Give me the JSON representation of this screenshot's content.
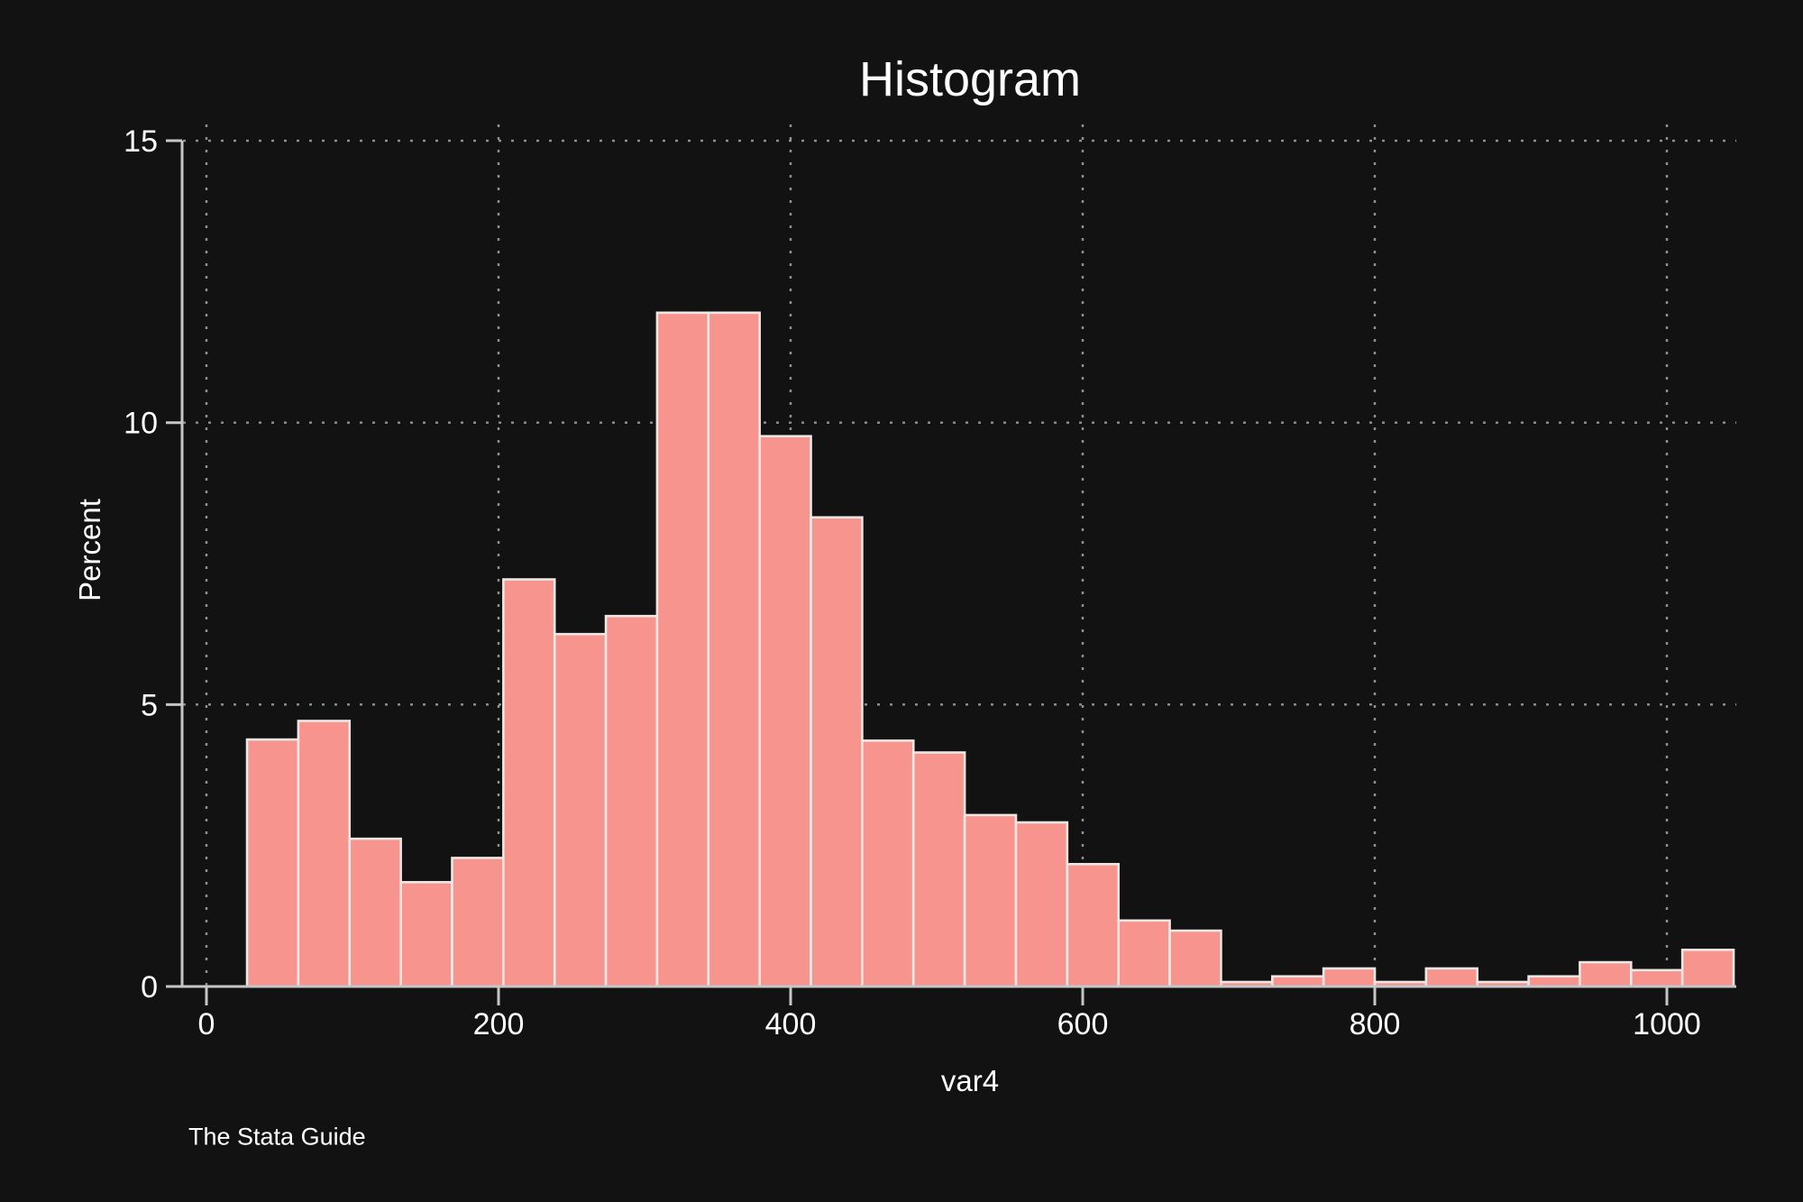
{
  "title": "Histogram",
  "footer": "The Stata Guide",
  "chart_data": {
    "type": "bar",
    "subtype": "histogram",
    "title": "Histogram",
    "xlabel": "var4",
    "ylabel": "Percent",
    "x_ticks": [
      0,
      200,
      400,
      600,
      800,
      1000
    ],
    "y_ticks": [
      0,
      5,
      10,
      15
    ],
    "xlim": [
      -17,
      1047
    ],
    "ylim": [
      0,
      15
    ],
    "grid": true,
    "grid_style": "dotted",
    "legend": "none",
    "bin_start": 27.8,
    "bin_width": 35.1,
    "values": [
      4.38,
      4.71,
      2.62,
      1.85,
      2.28,
      7.22,
      6.25,
      6.57,
      11.95,
      11.95,
      9.76,
      8.32,
      4.36,
      4.15,
      3.04,
      2.91,
      2.17,
      1.17,
      0.99,
      0.08,
      0.18,
      0.32,
      0.08,
      0.32,
      0.08,
      0.18,
      0.43,
      0.29,
      0.65
    ],
    "bar_color": "#f8948e",
    "bar_outline_color": "#ece7e5",
    "axis_color": "#c6c6c6",
    "grid_color": "#c9c9c9",
    "text_color": "#ffffff",
    "background_color": "#121212"
  }
}
